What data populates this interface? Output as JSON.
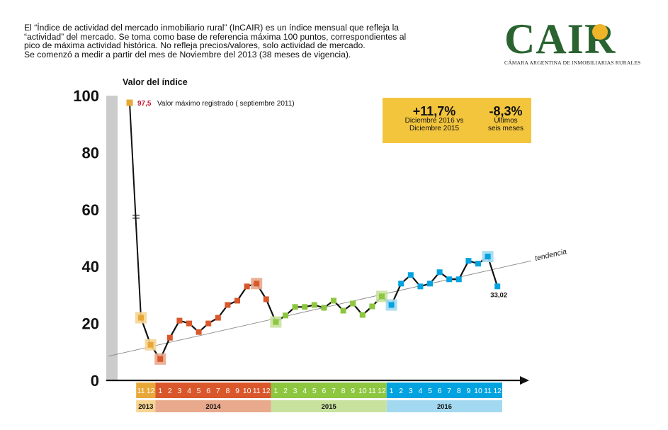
{
  "intro": {
    "lines": [
      "El “Índice de actividad del mercado inmobiliario rural” (InCAIR) es un índice mensual que refleja la",
      "“actividad” del mercado. Se toma como base de referencia máxima 100 puntos, correspondientes al",
      "pico de máxima actividad histórica. No refleja precios/valores, solo actividad de mercado.",
      "Se comenzó a medir a partir del mes de Noviembre del 2013 (38 meses de vigencia)."
    ]
  },
  "logo": {
    "wordmark": "CAIR",
    "subtitle": "CÁMARA ARGENTINA DE INMOBILIARIAS RURALES"
  },
  "callout": {
    "left_value": "+11,7%",
    "left_label_1": "Diciembre 2016 vs",
    "left_label_2": "Diciembre 2015",
    "right_value": "-8,3%",
    "right_label_1": "Últimos",
    "right_label_2": "seis meses"
  },
  "colors": {
    "y2013": "#e8a838",
    "y2014": "#d9572b",
    "y2015": "#8dc63f",
    "y2016": "#00a3e0",
    "y2013_light": "#f6d492",
    "y2014_light": "#e8a98c",
    "y2015_light": "#c8e29e",
    "y2016_light": "#a3d9f0",
    "callout": "#f2c53d",
    "axis_bar": "#cccccc",
    "line": "#111111",
    "trend": "#888888",
    "max_value": "#c8102e"
  },
  "chart_data": {
    "type": "line",
    "ylabel": "Valor del índice",
    "ylim": [
      0,
      100
    ],
    "yticks": [
      0,
      20,
      40,
      60,
      80,
      100
    ],
    "x": [
      "11",
      "12",
      "1",
      "2",
      "3",
      "4",
      "5",
      "6",
      "7",
      "8",
      "9",
      "10",
      "11",
      "12",
      "1",
      "2",
      "3",
      "4",
      "5",
      "6",
      "7",
      "8",
      "9",
      "10",
      "11",
      "12",
      "1",
      "2",
      "3",
      "4",
      "5",
      "6",
      "7",
      "8",
      "9",
      "10",
      "11",
      "12"
    ],
    "years": [
      {
        "label": "2013",
        "months": [
          "11",
          "12"
        ],
        "color_key": "y2013"
      },
      {
        "label": "2014",
        "months": [
          "1",
          "2",
          "3",
          "4",
          "5",
          "6",
          "7",
          "8",
          "9",
          "10",
          "11",
          "12"
        ],
        "color_key": "y2014"
      },
      {
        "label": "2015",
        "months": [
          "1",
          "2",
          "3",
          "4",
          "5",
          "6",
          "7",
          "8",
          "9",
          "10",
          "11",
          "12"
        ],
        "color_key": "y2015"
      },
      {
        "label": "2016",
        "months": [
          "1",
          "2",
          "3",
          "4",
          "5",
          "6",
          "7",
          "8",
          "9",
          "10",
          "11",
          "12"
        ],
        "color_key": "y2016"
      }
    ],
    "max_point": {
      "value": 97.5,
      "value_label": "97,5",
      "label": "Valor máximo registrado ( septiembre 2011)"
    },
    "series": [
      {
        "name": "InCAIR",
        "values": [
          22.0,
          12.5,
          7.5,
          15.0,
          21.0,
          20.0,
          17.0,
          20.0,
          22.0,
          26.5,
          28.0,
          33.0,
          34.0,
          28.5,
          20.5,
          22.8,
          25.8,
          25.8,
          26.5,
          25.5,
          28.0,
          24.5,
          27.0,
          23.0,
          26.0,
          29.5,
          26.5,
          34.0,
          37.0,
          33.0,
          34.0,
          38.0,
          35.5,
          35.5,
          42.0,
          41.0,
          43.5,
          33.02
        ]
      }
    ],
    "highlights": [
      0,
      1,
      2,
      12,
      14,
      25,
      26,
      36
    ],
    "last_value_label": "33,02",
    "trend": {
      "label": "tendencia",
      "start_value": 8.5,
      "end_value": 42.0
    }
  }
}
